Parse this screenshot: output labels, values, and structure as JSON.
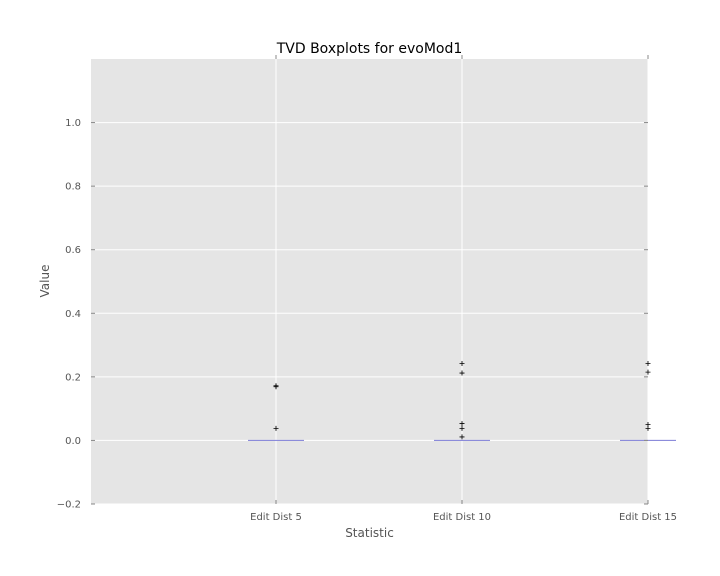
{
  "chart_data": {
    "type": "box",
    "title": "TVD Boxplots for evoMod1",
    "xlabel": "Statistic",
    "ylabel": "Value",
    "ylim": [
      -0.2,
      1.2
    ],
    "yticks": [
      -0.2,
      0.0,
      0.2,
      0.4,
      0.6,
      0.8,
      1.0
    ],
    "ytick_labels": [
      "−0.2",
      "0.0",
      "0.2",
      "0.4",
      "0.6",
      "0.8",
      "1.0"
    ],
    "categories": [
      "Edit Dist 5",
      "Edit Dist 10",
      "Edit Dist 15"
    ],
    "boxes": [
      {
        "name": "Edit Dist 5",
        "q1": 0.0,
        "median": 0.0,
        "q3": 0.0,
        "whisker_low": 0.0,
        "whisker_high": 0.0,
        "outliers": [
          0.172,
          0.169,
          0.038
        ]
      },
      {
        "name": "Edit Dist 10",
        "q1": 0.0,
        "median": 0.0,
        "q3": 0.0,
        "whisker_low": 0.0,
        "whisker_high": 0.0,
        "outliers": [
          0.242,
          0.212,
          0.053,
          0.038,
          0.011
        ]
      },
      {
        "name": "Edit Dist 15",
        "q1": 0.0,
        "median": 0.0,
        "q3": 0.0,
        "whisker_low": 0.0,
        "whisker_high": 0.0,
        "outliers": [
          0.242,
          0.215,
          0.05,
          0.038
        ]
      }
    ],
    "grid": true,
    "colors": {
      "background": "#e5e5e5",
      "grid": "#ffffff",
      "median": "#7b7bd6",
      "outlier": "#000000"
    }
  }
}
